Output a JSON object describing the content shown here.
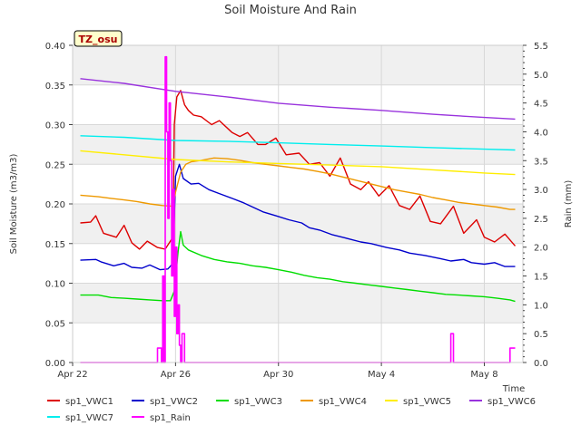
{
  "chart_data": {
    "type": "line",
    "title": "Soil Moisture And Rain",
    "site_badge": "TZ_osu",
    "xlabel": "Time",
    "ylabel": "Soil Moisture (m3/m3)",
    "ylabel_right": "Rain (mm)",
    "ylim": [
      0,
      0.4
    ],
    "ylim_right": [
      0,
      5.5
    ],
    "y_ticks": [
      "0.00",
      "0.05",
      "0.10",
      "0.15",
      "0.20",
      "0.25",
      "0.30",
      "0.35",
      "0.40"
    ],
    "y_right_ticks": [
      "0.0",
      "0.5",
      "1.0",
      "1.5",
      "2.0",
      "2.5",
      "3.0",
      "3.5",
      "4.0",
      "4.5",
      "5.0",
      "5.5"
    ],
    "x_range_days": [
      0,
      17.5
    ],
    "x_ticks": [
      {
        "label": "Apr 22",
        "day": 0
      },
      {
        "label": "Apr 26",
        "day": 4
      },
      {
        "label": "Apr 30",
        "day": 8
      },
      {
        "label": "May 4",
        "day": 12
      },
      {
        "label": "May 8",
        "day": 16
      }
    ],
    "grid": true,
    "legend_position": "bottom",
    "series": [
      {
        "name": "sp1_VWC1",
        "color": "#dd0000",
        "axis": "left",
        "x": [
          0.3,
          0.7,
          0.9,
          1.2,
          1.7,
          2.0,
          2.3,
          2.6,
          2.9,
          3.3,
          3.6,
          3.9,
          3.95,
          4.05,
          4.2,
          4.35,
          4.5,
          4.7,
          5.0,
          5.4,
          5.7,
          6.2,
          6.5,
          6.8,
          7.2,
          7.5,
          7.9,
          8.3,
          8.8,
          9.2,
          9.6,
          10.0,
          10.4,
          10.8,
          11.2,
          11.5,
          11.9,
          12.3,
          12.7,
          13.1,
          13.5,
          13.9,
          14.3,
          14.8,
          15.2,
          15.7,
          16.0,
          16.4,
          16.8,
          17.2
        ],
        "y": [
          0.176,
          0.177,
          0.185,
          0.163,
          0.158,
          0.173,
          0.151,
          0.143,
          0.153,
          0.145,
          0.143,
          0.158,
          0.3,
          0.335,
          0.343,
          0.325,
          0.318,
          0.312,
          0.31,
          0.3,
          0.305,
          0.29,
          0.285,
          0.29,
          0.275,
          0.275,
          0.283,
          0.262,
          0.264,
          0.25,
          0.252,
          0.235,
          0.258,
          0.225,
          0.218,
          0.228,
          0.21,
          0.223,
          0.198,
          0.193,
          0.21,
          0.178,
          0.175,
          0.197,
          0.163,
          0.18,
          0.158,
          0.152,
          0.162,
          0.147
        ]
      },
      {
        "name": "sp1_VWC2",
        "color": "#0000cc",
        "axis": "left",
        "x": [
          0.3,
          0.9,
          1.1,
          1.6,
          2.0,
          2.3,
          2.7,
          3.0,
          3.4,
          3.7,
          3.9,
          4.0,
          4.15,
          4.3,
          4.6,
          4.9,
          5.3,
          5.7,
          6.2,
          6.6,
          7.0,
          7.4,
          7.9,
          8.4,
          8.9,
          9.2,
          9.6,
          10.1,
          10.6,
          11.2,
          11.6,
          12.2,
          12.7,
          13.1,
          13.7,
          14.3,
          14.7,
          15.2,
          15.5,
          16.0,
          16.4,
          16.8,
          17.2
        ],
        "y": [
          0.129,
          0.13,
          0.127,
          0.122,
          0.125,
          0.12,
          0.119,
          0.123,
          0.117,
          0.118,
          0.125,
          0.235,
          0.25,
          0.232,
          0.225,
          0.226,
          0.218,
          0.213,
          0.207,
          0.202,
          0.196,
          0.19,
          0.185,
          0.18,
          0.176,
          0.17,
          0.167,
          0.161,
          0.157,
          0.152,
          0.15,
          0.145,
          0.142,
          0.138,
          0.135,
          0.131,
          0.128,
          0.13,
          0.126,
          0.124,
          0.126,
          0.121,
          0.121
        ]
      },
      {
        "name": "sp1_VWC3",
        "color": "#00dd00",
        "axis": "left",
        "x": [
          0.3,
          1.0,
          1.5,
          2.0,
          2.5,
          3.0,
          3.5,
          3.8,
          3.95,
          4.1,
          4.2,
          4.3,
          4.5,
          5.0,
          5.5,
          6.0,
          6.5,
          7.0,
          7.5,
          8.0,
          8.5,
          9.0,
          9.5,
          10.0,
          10.5,
          11.0,
          11.5,
          12.0,
          12.5,
          13.0,
          13.5,
          14.0,
          14.5,
          15.0,
          15.5,
          16.0,
          16.5,
          17.0,
          17.2
        ],
        "y": [
          0.085,
          0.085,
          0.082,
          0.081,
          0.08,
          0.079,
          0.078,
          0.078,
          0.09,
          0.14,
          0.165,
          0.148,
          0.142,
          0.135,
          0.13,
          0.127,
          0.125,
          0.122,
          0.12,
          0.117,
          0.114,
          0.11,
          0.107,
          0.105,
          0.102,
          0.1,
          0.098,
          0.096,
          0.094,
          0.092,
          0.09,
          0.088,
          0.086,
          0.085,
          0.084,
          0.083,
          0.081,
          0.079,
          0.077
        ]
      },
      {
        "name": "sp1_VWC4",
        "color": "#ee9900",
        "axis": "left",
        "x": [
          0.3,
          1.0,
          1.5,
          2.0,
          2.5,
          3.0,
          3.5,
          3.9,
          4.0,
          4.2,
          4.4,
          4.6,
          5.0,
          5.5,
          6.0,
          6.5,
          7.0,
          7.5,
          8.0,
          8.5,
          9.0,
          9.5,
          10.0,
          10.5,
          11.0,
          11.5,
          12.0,
          12.5,
          13.0,
          13.5,
          14.0,
          14.5,
          15.0,
          15.5,
          16.0,
          16.5,
          17.0,
          17.2
        ],
        "y": [
          0.211,
          0.209,
          0.207,
          0.205,
          0.203,
          0.2,
          0.198,
          0.197,
          0.215,
          0.24,
          0.25,
          0.253,
          0.255,
          0.258,
          0.257,
          0.255,
          0.252,
          0.25,
          0.248,
          0.246,
          0.244,
          0.241,
          0.238,
          0.234,
          0.23,
          0.226,
          0.222,
          0.218,
          0.215,
          0.212,
          0.208,
          0.205,
          0.202,
          0.2,
          0.198,
          0.196,
          0.193,
          0.193
        ]
      },
      {
        "name": "sp1_VWC5",
        "color": "#ffee00",
        "axis": "left",
        "x": [
          0.3,
          2.0,
          4.0,
          6.0,
          8.0,
          10.0,
          12.0,
          14.0,
          16.0,
          17.2
        ],
        "y": [
          0.267,
          0.262,
          0.256,
          0.253,
          0.251,
          0.249,
          0.247,
          0.243,
          0.239,
          0.237
        ]
      },
      {
        "name": "sp1_VWC6",
        "color": "#9933dd",
        "axis": "left",
        "x": [
          0.3,
          2.0,
          4.0,
          6.0,
          8.0,
          10.0,
          12.0,
          14.0,
          16.0,
          17.2
        ],
        "y": [
          0.358,
          0.352,
          0.342,
          0.335,
          0.327,
          0.322,
          0.318,
          0.313,
          0.309,
          0.307
        ]
      },
      {
        "name": "sp1_VWC7",
        "color": "#00eeee",
        "axis": "left",
        "x": [
          0.3,
          2.0,
          4.0,
          6.0,
          8.0,
          10.0,
          12.0,
          14.0,
          16.0,
          17.2
        ],
        "y": [
          0.286,
          0.284,
          0.28,
          0.279,
          0.277,
          0.275,
          0.273,
          0.271,
          0.269,
          0.268
        ]
      },
      {
        "name": "sp1_Rain",
        "color": "#ff00ff",
        "axis": "right",
        "x": [
          0.3,
          3.3,
          3.3,
          3.45,
          3.45,
          3.5,
          3.5,
          3.55,
          3.55,
          3.6,
          3.6,
          3.65,
          3.65,
          3.7,
          3.7,
          3.75,
          3.75,
          3.8,
          3.8,
          3.85,
          3.85,
          3.9,
          3.9,
          3.95,
          3.95,
          4.0,
          4.0,
          4.05,
          4.05,
          4.1,
          4.1,
          4.15,
          4.15,
          4.2,
          4.2,
          4.25,
          4.25,
          4.35,
          4.35,
          4.4,
          4.4,
          14.7,
          14.7,
          14.8,
          14.8,
          17.0,
          17.0,
          17.2
        ],
        "y": [
          0,
          0,
          0.25,
          0.25,
          0,
          0,
          1.5,
          1.5,
          0,
          0,
          5.3,
          5.3,
          4.0,
          4.0,
          2.5,
          2.5,
          4.5,
          4.5,
          3.5,
          3.5,
          1.5,
          1.5,
          3.0,
          3.0,
          0.8,
          0.8,
          2.0,
          2.0,
          0.5,
          0.5,
          1.0,
          1.0,
          0.3,
          0.3,
          0,
          0,
          0.5,
          0.5,
          0,
          0,
          0,
          0,
          0.5,
          0.5,
          0,
          0,
          0.25,
          0.25
        ]
      }
    ]
  }
}
